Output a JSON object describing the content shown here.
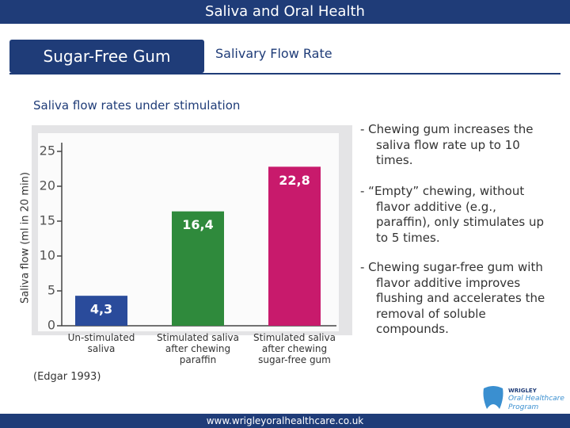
{
  "header": {
    "title": "Saliva and Oral Health"
  },
  "tabs": [
    "Sugar-Free Gum",
    "Salivary Flow Rate"
  ],
  "subtitle": "Saliva flow rates under stimulation",
  "chart_data": {
    "type": "bar",
    "ylabel": "Saliva flow (ml in 20 min)",
    "categories": [
      "Un-stimulated saliva",
      "Stimulated saliva after chewing paraffin",
      "Stimulated saliva after chewing sugar-free gum"
    ],
    "values": [
      4.3,
      16.4,
      22.8
    ],
    "value_labels": [
      "4,3",
      "16,4",
      "22,8"
    ],
    "colors": [
      "#2a4b9b",
      "#2f8a3c",
      "#c81a6c"
    ],
    "ylim": [
      0,
      25
    ],
    "yticks": [
      0,
      5,
      10,
      15,
      20,
      25
    ]
  },
  "bullets": [
    "- Chewing gum increases the saliva flow rate up to 10 times.",
    "- “Empty” chewing, without flavor additive (e.g., paraffin), only stimulates up to 5 times.",
    "- Chewing sugar-free gum with flavor additive improves flushing and accelerates the removal of soluble compounds."
  ],
  "source": "(Edgar 1993)",
  "logo": {
    "brand": "WRIGLEY",
    "line1": "Oral Healthcare",
    "line2": "Program"
  },
  "footer": {
    "url": "www.wrigleyoralhealthcare.co.uk"
  }
}
